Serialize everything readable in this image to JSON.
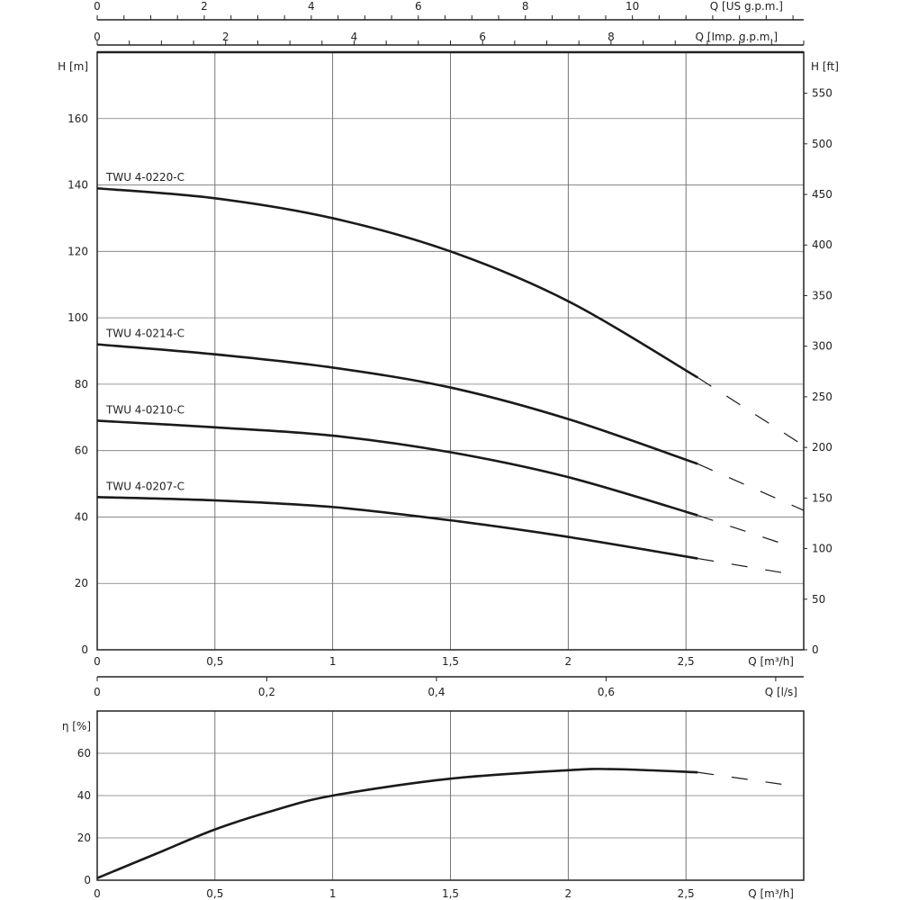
{
  "chart_data": [
    {
      "type": "line",
      "title": "",
      "xlabel": "Q [m³/h]",
      "ylabel": "H [m]",
      "ylabel_right": "H [ft]",
      "xlim": [
        0,
        3
      ],
      "ylim": [
        0,
        180
      ],
      "grid": true,
      "x_ticks": [
        "0",
        "0,5",
        "1",
        "1,5",
        "2",
        "2,5"
      ],
      "x_tick_values": [
        0,
        0.5,
        1,
        1.5,
        2,
        2.5
      ],
      "y_ticks": [
        "0",
        "20",
        "40",
        "60",
        "80",
        "100",
        "120",
        "140",
        "160"
      ],
      "y_tick_values": [
        0,
        20,
        40,
        60,
        80,
        100,
        120,
        140,
        160
      ],
      "y_right_ticks": [
        "0",
        "50",
        "100",
        "150",
        "200",
        "250",
        "300",
        "350",
        "400",
        "450",
        "500",
        "550"
      ],
      "y_right_tick_values": [
        0,
        50,
        100,
        150,
        200,
        250,
        300,
        350,
        400,
        450,
        500,
        550
      ],
      "top_axes": [
        {
          "label": "Q [US g.p.m.]",
          "ticks": [
            "0",
            "2",
            "4",
            "6",
            "8",
            "10"
          ],
          "tick_values": [
            0,
            2,
            4,
            6,
            8,
            10
          ],
          "range": [
            0,
            13.2
          ]
        },
        {
          "label": "Q [Imp. g.p.m.]",
          "ticks": [
            "0",
            "2",
            "4",
            "6",
            "8"
          ],
          "tick_values": [
            0,
            2,
            4,
            6,
            8
          ],
          "range": [
            0,
            11
          ]
        }
      ],
      "bottom_axis2": {
        "label": "Q [l/s]",
        "ticks": [
          "0",
          "0,2",
          "0,4",
          "0,6"
        ],
        "tick_values": [
          0,
          0.2,
          0.4,
          0.6
        ],
        "range": [
          0,
          0.833
        ]
      },
      "series": [
        {
          "name": "TWU 4-0220-C",
          "x": [
            0,
            0.5,
            1,
            1.5,
            2,
            2.55
          ],
          "y": [
            139,
            136,
            130,
            120,
            105,
            82
          ],
          "dashed_x": [
            2.55,
            3.0
          ],
          "dashed_y": [
            82,
            61.5
          ]
        },
        {
          "name": "TWU 4-0214-C",
          "x": [
            0,
            0.5,
            1,
            1.5,
            2,
            2.55
          ],
          "y": [
            92,
            89,
            85,
            79,
            69.5,
            56
          ],
          "dashed_x": [
            2.55,
            3.0
          ],
          "dashed_y": [
            56,
            42
          ]
        },
        {
          "name": "TWU 4-0210-C",
          "x": [
            0,
            0.5,
            1,
            1.5,
            2,
            2.55
          ],
          "y": [
            69,
            67,
            64.5,
            59.5,
            52,
            40.5
          ],
          "dashed_x": [
            2.55,
            2.93
          ],
          "dashed_y": [
            40.5,
            31.5
          ]
        },
        {
          "name": "TWU 4-0207-C",
          "x": [
            0,
            0.5,
            1,
            1.5,
            2,
            2.55
          ],
          "y": [
            46,
            45,
            43,
            39,
            34,
            27.5
          ],
          "dashed_x": [
            2.55,
            2.93
          ],
          "dashed_y": [
            27.5,
            23
          ]
        }
      ]
    },
    {
      "type": "line",
      "title": "",
      "xlabel": "Q [m³/h]",
      "ylabel": "η [%]",
      "xlim": [
        0,
        3
      ],
      "ylim": [
        0,
        80
      ],
      "grid": true,
      "x_ticks": [
        "0",
        "0,5",
        "1",
        "1,5",
        "2",
        "2,5"
      ],
      "x_tick_values": [
        0,
        0.5,
        1,
        1.5,
        2,
        2.5
      ],
      "y_ticks": [
        "0",
        "20",
        "40",
        "60"
      ],
      "y_tick_values": [
        0,
        20,
        40,
        60
      ],
      "series": [
        {
          "name": "efficiency",
          "x": [
            0,
            0.25,
            0.5,
            0.75,
            1,
            1.5,
            2,
            2.2,
            2.55
          ],
          "y": [
            1,
            12.5,
            24,
            33,
            40,
            48,
            52,
            52.5,
            51
          ],
          "dashed_x": [
            2.55,
            2.93
          ],
          "dashed_y": [
            51,
            45
          ]
        }
      ]
    }
  ]
}
